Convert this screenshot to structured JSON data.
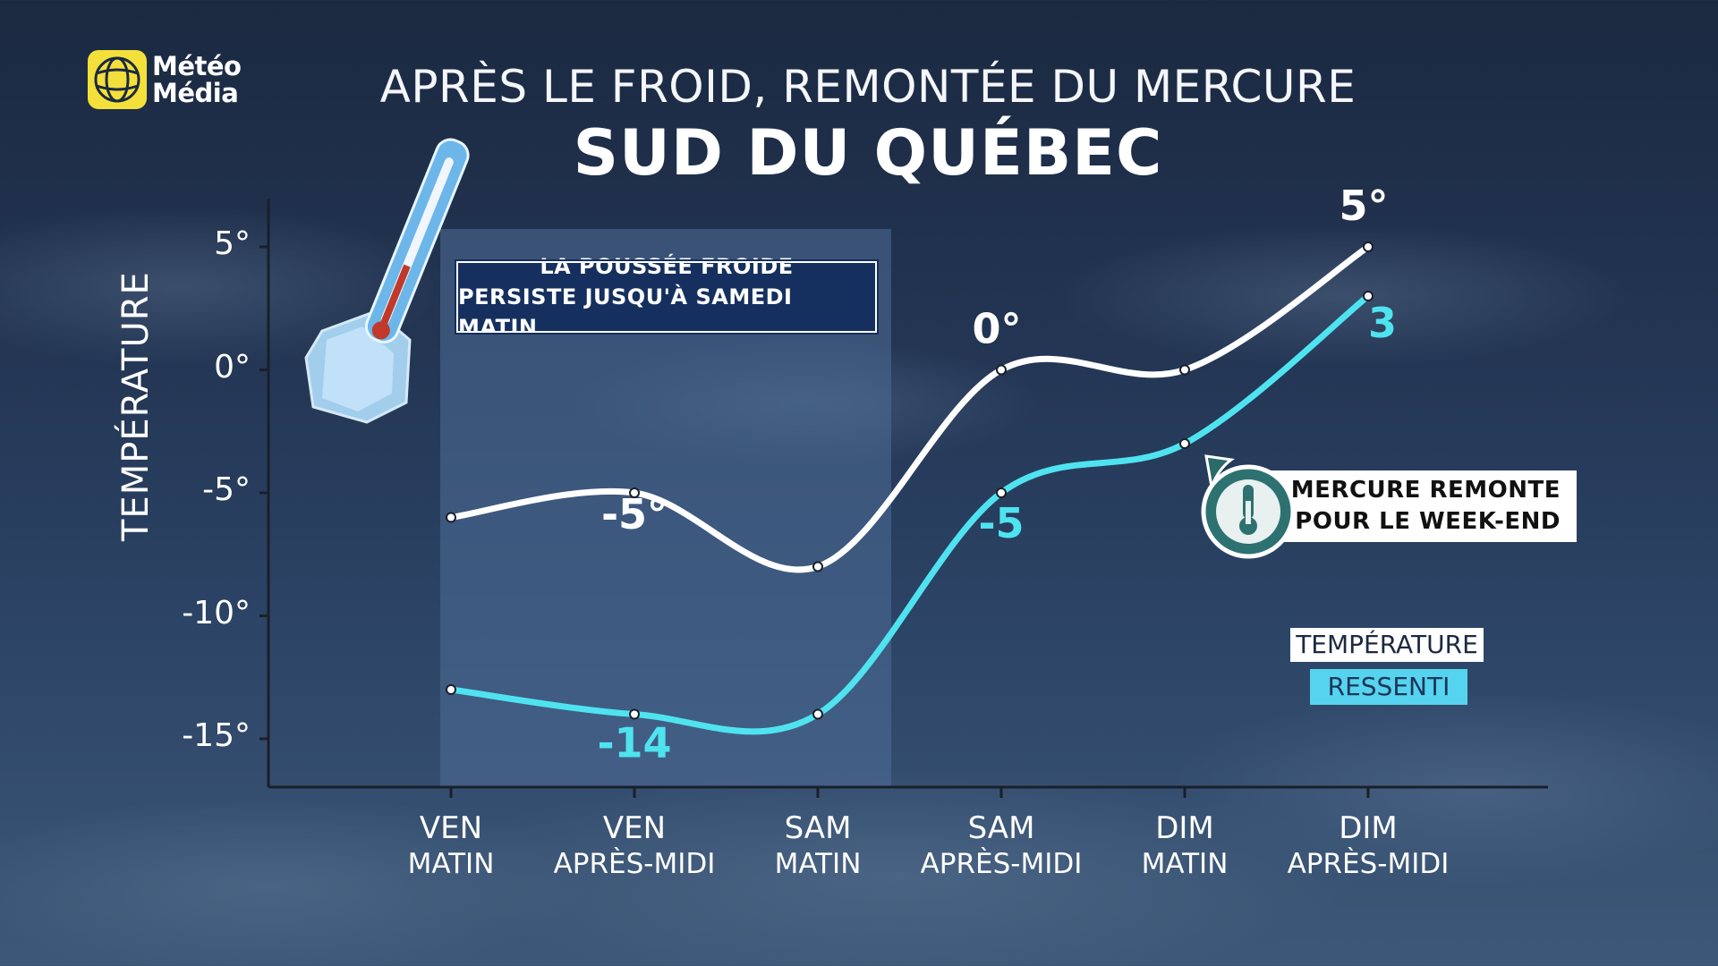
{
  "brand": {
    "line1": "Météo",
    "line2": "Média"
  },
  "title": "APRÈS LE FROID, REMONTÉE DU MERCURE",
  "subtitle": "SUD DU QUÉBEC",
  "callout_cold": {
    "line1": "LA POUSSÉE FROIDE",
    "line2": "PERSISTE JUSQU'À SAMEDI MATIN"
  },
  "callout_warm": {
    "line1": "LE MERCURE REMONTE",
    "line2": "POUR LE WEEK-END",
    "icon": "thermometer-icon"
  },
  "legend": {
    "temperature": "TEMPÉRATURE",
    "ressenti": "RESSENTI"
  },
  "colors": {
    "temperature": "#ffffff",
    "ressenti": "#4fe3f0",
    "shade": "#4e6e98"
  },
  "chart_data": {
    "type": "line",
    "ylabel": "TEMPÉRATURE",
    "ylim": [
      -17,
      7
    ],
    "yticks": [
      5,
      0,
      -5,
      -10,
      -15
    ],
    "ytick_labels": [
      "5°",
      "0°",
      "-5°",
      "-10°",
      "-15°"
    ],
    "categories": [
      {
        "line1": "VEN",
        "line2": "MATIN"
      },
      {
        "line1": "VEN",
        "line2": "APRÈS-MIDI"
      },
      {
        "line1": "SAM",
        "line2": "MATIN"
      },
      {
        "line1": "SAM",
        "line2": "APRÈS-MIDI"
      },
      {
        "line1": "DIM",
        "line2": "MATIN"
      },
      {
        "line1": "DIM",
        "line2": "APRÈS-MIDI"
      }
    ],
    "shaded_period": [
      "VEN MATIN",
      "SAM MATIN"
    ],
    "series": [
      {
        "name": "TEMPÉRATURE",
        "values": [
          -6,
          -5,
          -8,
          0,
          0,
          5
        ],
        "labels": [
          null,
          "-5°",
          null,
          "0°",
          null,
          "5°"
        ]
      },
      {
        "name": "RESSENTI",
        "values": [
          -13,
          -14,
          -14,
          -5,
          -3,
          3
        ],
        "labels": [
          null,
          "-14",
          null,
          "-5",
          null,
          "3"
        ]
      }
    ]
  }
}
